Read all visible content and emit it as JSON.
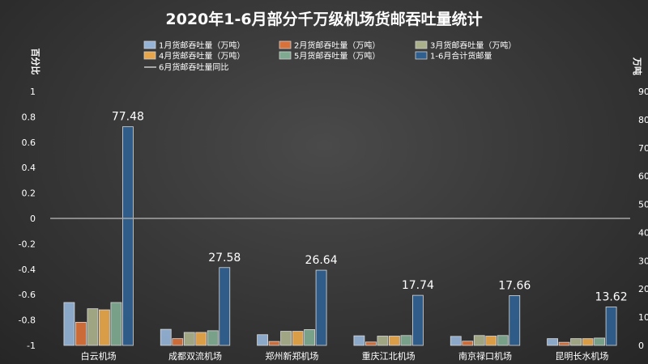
{
  "chart_data": {
    "type": "bar",
    "title": "2020年1-6月部分千万级机场货邮吞吐量统计",
    "categories": [
      "白云机场",
      "成都双流机场",
      "郑州新郑机场",
      "重庆江北机场",
      "南京禄口机场",
      "昆明长水机场"
    ],
    "series": [
      {
        "name": "1月货邮吞吐量（万吨）",
        "color": "#95b3d7",
        "axis": "right",
        "values": [
          15.2,
          5.7,
          3.8,
          3.4,
          3.2,
          2.4
        ]
      },
      {
        "name": "2月货邮吞吐量（万吨）",
        "color": "#d9713a",
        "axis": "right",
        "values": [
          8.2,
          2.4,
          1.4,
          1.2,
          1.5,
          1.1
        ]
      },
      {
        "name": "3月货邮吞吐量（万吨）",
        "color": "#a9b08a",
        "axis": "right",
        "values": [
          13.0,
          4.6,
          5.0,
          3.3,
          3.5,
          2.4
        ]
      },
      {
        "name": "4月货邮吞吐量（万吨）",
        "color": "#e8a64a",
        "axis": "right",
        "values": [
          12.6,
          4.6,
          5.0,
          3.3,
          3.3,
          2.4
        ]
      },
      {
        "name": "5月货邮吞吐量（万吨）",
        "color": "#7fa990",
        "axis": "right",
        "values": [
          15.2,
          5.2,
          5.6,
          3.5,
          3.5,
          2.6
        ]
      },
      {
        "name": "1-6月合计货邮量",
        "color": "#2f5f8f",
        "axis": "right",
        "values": [
          77.48,
          27.58,
          26.64,
          17.74,
          17.66,
          13.62
        ]
      },
      {
        "name": "6月货邮吞吐量同比",
        "color": "#a6a6a6",
        "axis": "left",
        "type": "line",
        "values": [
          0,
          0,
          0,
          0,
          0,
          0
        ]
      }
    ],
    "data_labels": [
      "77.48",
      "27.58",
      "26.64",
      "17.74",
      "17.66",
      "13.62"
    ],
    "left_axis": {
      "label": "百分比",
      "min": -1,
      "max": 1,
      "ticks": [
        "1",
        "0.8",
        "0.6",
        "0.4",
        "0.2",
        "0",
        "-0.2",
        "-0.4",
        "-0.6",
        "-0.8",
        "-1"
      ]
    },
    "right_axis": {
      "label": "万吨",
      "min": 0,
      "max": 90,
      "ticks": [
        "90",
        "80",
        "70",
        "60",
        "50",
        "40",
        "30",
        "20",
        "10",
        "0"
      ]
    },
    "legend_position": "top",
    "grid": false
  }
}
